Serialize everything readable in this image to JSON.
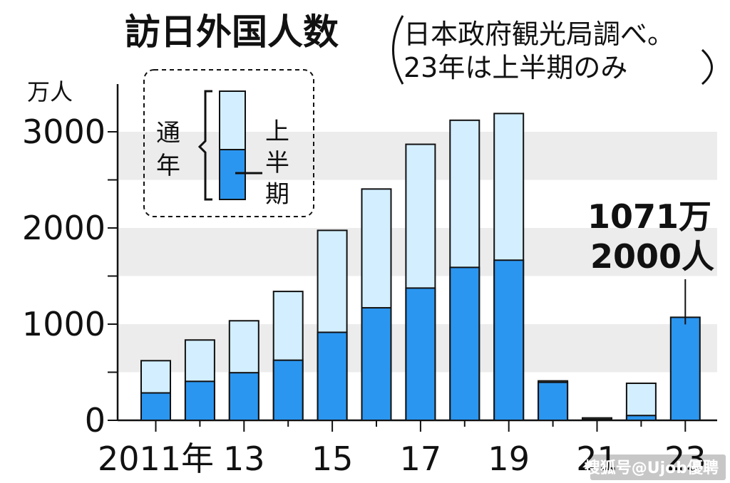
{
  "chart_data": {
    "type": "bar",
    "title": "訪日外国人数",
    "note_lines": [
      "日本政府観光局調べ。",
      "23年は上半期のみ"
    ],
    "unit_label": "万人",
    "ylim": [
      0,
      3500
    ],
    "yticks": [
      {
        "value": 0,
        "label": "0"
      },
      {
        "value": 1000,
        "label": "1000"
      },
      {
        "value": 2000,
        "label": "2000"
      },
      {
        "value": 3000,
        "label": "3000"
      }
    ],
    "grid_bands": [
      [
        500,
        1000
      ],
      [
        1500,
        2000
      ],
      [
        2500,
        3000
      ]
    ],
    "categories": [
      "2011",
      "2012",
      "2013",
      "2014",
      "2015",
      "2016",
      "2017",
      "2018",
      "2019",
      "2020",
      "2021",
      "2022",
      "2023"
    ],
    "x_tick_labels": [
      {
        "index": 0,
        "label": "2011年"
      },
      {
        "index": 2,
        "label": "13"
      },
      {
        "index": 4,
        "label": "15"
      },
      {
        "index": 6,
        "label": "17"
      },
      {
        "index": 8,
        "label": "19"
      },
      {
        "index": 10,
        "label": "21"
      },
      {
        "index": 12,
        "label": "23"
      }
    ],
    "series": [
      {
        "name": "上半期",
        "color": "#2b96f0",
        "values": [
          285,
          405,
          495,
          625,
          915,
          1170,
          1375,
          1590,
          1665,
          395,
          10,
          50,
          1071.2
        ]
      },
      {
        "name": "通年",
        "color": "#d3efff",
        "values": [
          620,
          835,
          1035,
          1340,
          1975,
          2405,
          2870,
          3120,
          3190,
          410,
          25,
          385,
          null
        ]
      }
    ],
    "legend": {
      "full_year_label": "通年",
      "half_year_label": "上半期",
      "placement": "top-left"
    },
    "annotation": {
      "lines": [
        "1071万",
        "2000人"
      ],
      "target_index": 12
    },
    "watermark": "搜狐号@Ujob優聘"
  }
}
